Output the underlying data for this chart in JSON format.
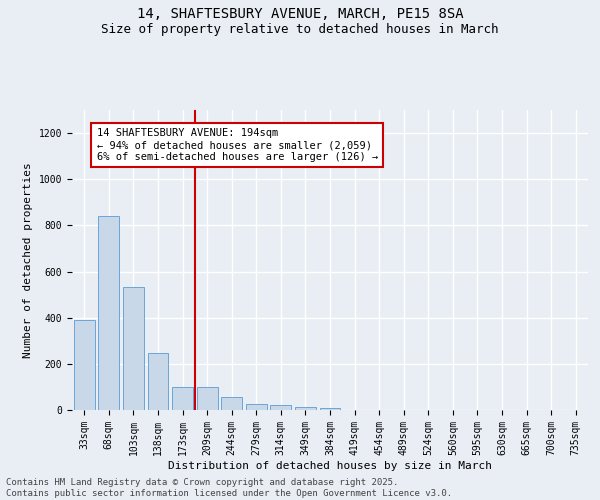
{
  "title_line1": "14, SHAFTESBURY AVENUE, MARCH, PE15 8SA",
  "title_line2": "Size of property relative to detached houses in March",
  "xlabel": "Distribution of detached houses by size in March",
  "ylabel": "Number of detached properties",
  "categories": [
    "33sqm",
    "68sqm",
    "103sqm",
    "138sqm",
    "173sqm",
    "209sqm",
    "244sqm",
    "279sqm",
    "314sqm",
    "349sqm",
    "384sqm",
    "419sqm",
    "454sqm",
    "489sqm",
    "524sqm",
    "560sqm",
    "595sqm",
    "630sqm",
    "665sqm",
    "700sqm",
    "735sqm"
  ],
  "values": [
    390,
    840,
    535,
    248,
    100,
    100,
    55,
    25,
    20,
    15,
    10,
    0,
    0,
    0,
    0,
    0,
    0,
    0,
    0,
    0,
    0
  ],
  "bar_color": "#c8d8e8",
  "bar_edge_color": "#5b9bd5",
  "ref_line_x": 4.5,
  "ref_line_color": "#cc0000",
  "annotation_text": "14 SHAFTESBURY AVENUE: 194sqm\n← 94% of detached houses are smaller (2,059)\n6% of semi-detached houses are larger (126) →",
  "annotation_box_color": "#ffffff",
  "annotation_box_edge_color": "#cc0000",
  "ylim": [
    0,
    1300
  ],
  "yticks": [
    0,
    200,
    400,
    600,
    800,
    1000,
    1200
  ],
  "background_color": "#e8eef4",
  "grid_color": "#ffffff",
  "footer_line1": "Contains HM Land Registry data © Crown copyright and database right 2025.",
  "footer_line2": "Contains public sector information licensed under the Open Government Licence v3.0.",
  "title_fontsize": 10,
  "subtitle_fontsize": 9,
  "axis_label_fontsize": 8,
  "tick_fontsize": 7,
  "annotation_fontsize": 7.5,
  "footer_fontsize": 6.5
}
